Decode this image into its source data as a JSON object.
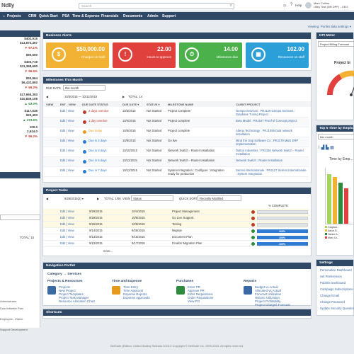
{
  "topbar": {
    "logo": "Ndlly",
    "search_placeholder": "Search",
    "help": "Help",
    "user_name": "Marc Collins",
    "user_role": "Utley Test (NR DPF) - CEO"
  },
  "menu": [
    "Projects",
    "CRM",
    "Quick Start",
    "PSA",
    "Time & Expense",
    "Financials",
    "Documents",
    "Admin",
    "Support"
  ],
  "viewing": "Viewing: Portlet data settings ▾",
  "left_values": [
    {
      "v": "$402,915",
      "c": ""
    },
    {
      "v": "$13,672,467",
      "c": ""
    },
    {
      "v": "▼ 97.1%",
      "c": "red"
    },
    {
      "v": "$90,500",
      "c": ""
    },
    {
      "v": "$402,719",
      "c": ""
    },
    {
      "v": "$11,368,690",
      "c": ""
    },
    {
      "v": "▼ 96.5%",
      "c": "red"
    },
    {
      "v": "$53,964",
      "c": ""
    },
    {
      "v": "$6,432,893",
      "c": ""
    },
    {
      "v": "▼ 99.2%",
      "c": "red"
    },
    {
      "v": "$17,665,393",
      "c": ""
    },
    {
      "v": "$10,839,108",
      "c": ""
    },
    {
      "v": "▲ 63.0%",
      "c": "grn"
    },
    {
      "v": "$117,535",
      "c": ""
    },
    {
      "v": "$20,493",
      "c": ""
    },
    {
      "v": "▲ 473.6%",
      "c": "grn"
    },
    {
      "v": "100.0",
      "c": ""
    },
    {
      "v": "2,624.0",
      "c": ""
    },
    {
      "v": "▼ 96.2%",
      "c": "red"
    }
  ],
  "left_lower": {
    "total_label": "TOTAL: 15",
    "items": [
      "Administrator",
      "Duis Initiative Plan",
      "Employee - Elaine",
      "Support Development"
    ]
  },
  "business_alerts": {
    "title": "Business Alerts",
    "tiles": [
      {
        "value": "$50,000.00",
        "label": "Charges on hold",
        "color": "#f2b233",
        "icon": "$"
      },
      {
        "value": "22.00",
        "label": "Hours to approve",
        "color": "#e0413c",
        "icon": "!"
      },
      {
        "value": "14.00",
        "label": "Milestones due",
        "color": "#4bb14a",
        "icon": "⏱"
      },
      {
        "value": "102.00",
        "label": "Resources on staff",
        "color": "#2a9fd8",
        "icon": "▦"
      }
    ]
  },
  "milestones": {
    "title": "Milestones This Month",
    "due_date_label": "DUE DATE",
    "due_date_value": "this month",
    "range": "10/3/2015 — 10/12/2015",
    "total": "TOTAL: 14",
    "headers": [
      "VIEW",
      "ENT - VIEW",
      "DUE DATE STATUS",
      "DUE DATE ▾",
      "STATUS ▾",
      "MILESTONE NAME",
      "CLIENT PROJECT"
    ],
    "rows": [
      {
        "status_text": "2 days overdue",
        "status_color": "#c0392b",
        "date": "10/3/2015",
        "status": "Not Started",
        "name": "Project Complete",
        "client": "Gempo Services : PRJ128 Gempo Services : Database Tuning Project"
      },
      {
        "status_text": "1 day overdue",
        "status_color": "#c0392b",
        "date": "10/4/2015",
        "status": "Not Started",
        "name": "Project complete",
        "client": "Beta Model : PRJ167 Proof of Concept project"
      },
      {
        "status_text": "Due today",
        "status_color": "#e69a1e",
        "date": "10/5/2015",
        "status": "Not Started",
        "name": "Project complete",
        "client": "Altena Technology : PRJ1059 DoB network installation"
      },
      {
        "status_text": "Due in 3 days",
        "status_color": "#2e7bd3",
        "date": "10/8/2015",
        "status": "Not Started",
        "name": "Go live",
        "client": "Mind the Gap Software Co : PRJ179 M&G ERP Implementation"
      },
      {
        "status_text": "Due in 5 days",
        "status_color": "#2e7bd3",
        "date": "10/10/2015",
        "status": "Not Started",
        "name": "Network Switch - Router Installation",
        "client": "Dalton Industries : PRJ150 Network Switch - Router Installation"
      },
      {
        "status_text": "Due in 6 days",
        "status_color": "#2e7bd3",
        "date": "10/11/2015",
        "status": "Not Started",
        "name": "Network Switch - Router Installation",
        "client": "Network Switch : Router Installation"
      },
      {
        "status_text": "Due in 7 days",
        "status_color": "#2e7bd3",
        "date": "10/12/2015",
        "status": "Not Started",
        "name": "System Integration : Configure : Integration ready for production",
        "client": "Sereno Internationale : PRJ127 Sereno Internationale : System Integration"
      }
    ]
  },
  "project_tasks": {
    "title": "Project Tasks",
    "range": "9/28/2015(2) ▾",
    "total": "TOTAL: 1/06",
    "view_label": "VIEW",
    "view_value": "Status",
    "quick_sort_label": "QUICK SORT",
    "quick_sort_value": "Recently Modified",
    "pct_header": "% COMPLETE",
    "more": "more...",
    "rows": [
      {
        "start": "9/28/2015",
        "end": "10/4/2015",
        "name": "Project Management",
        "dot": "#c0392b",
        "pct": ""
      },
      {
        "start": "9/28/2015",
        "end": "10/8/2015",
        "name": "Go Live Support",
        "dot": "#c0392b",
        "pct": ""
      },
      {
        "start": "9/28/2015",
        "end": "10/5/2015",
        "name": "Testing",
        "dot": "#c0392b",
        "pct": ""
      },
      {
        "start": "9/14/2015",
        "end": "9/28/2015",
        "name": "Migrate",
        "dot": "#2e8b3d",
        "pct": "100%"
      },
      {
        "start": "9/13/2015",
        "end": "9/15/2015",
        "name": "Document Plan",
        "dot": "#2e8b3d",
        "pct": "100%"
      },
      {
        "start": "9/13/2015",
        "end": "9/17/2015",
        "name": "Finalize Migration Plan",
        "dot": "#2e8b3d",
        "pct": "100%"
      }
    ]
  },
  "navigation": {
    "title": "Navigation Portlet",
    "category": "Category → Services",
    "groups": [
      {
        "title": "Projects & Resources",
        "links": [
          "Projects",
          "New Project",
          "Project Templates",
          "Project Task Manager",
          "Resource Allocation Chart"
        ]
      },
      {
        "title": "Time and Expense",
        "links": [
          "Time Entry",
          "Time Approval",
          "Expense Reports",
          "Expense Approvals"
        ]
      },
      {
        "title": "Purchases",
        "links": [
          "Enter PR",
          "Approve PR",
          "Enter Requisitions",
          "Order Requisitions",
          "View PO"
        ]
      },
      {
        "title": "Reports",
        "links": [
          "Budget vs Actual",
          "Allocated vs Actual",
          "Forecast Utilization",
          "Historic Utilization",
          "Project Profitability",
          "Project Charges Forecast"
        ]
      }
    ]
  },
  "shortcuts": {
    "title": "Shortcuts"
  },
  "footer": "NetSuite (Edition: United States) Release 2015.2 Copyright © NetSuite Inc. 1999-2015. All rights reserved.",
  "kpi_meter": {
    "title": "KPI Meter",
    "select": "Project Billing Forecast",
    "gauge_label": "Project bi",
    "value_fraction": 0.62
  },
  "top5": {
    "title": "Top 5 Time by Employ...",
    "select": "this month",
    "chart_title": "Time by Emp...",
    "legend": [
      "Grayson...",
      "Aaron B...",
      "Hanne A...",
      "Marc Co..."
    ]
  },
  "settings": {
    "title": "Settings",
    "items": [
      "Personalize Dashboard",
      "Set Preferences",
      "Publish Dashboard",
      "Campaign Subscriptions",
      "Change Email",
      "Change Password",
      "Update Security Questions"
    ]
  }
}
